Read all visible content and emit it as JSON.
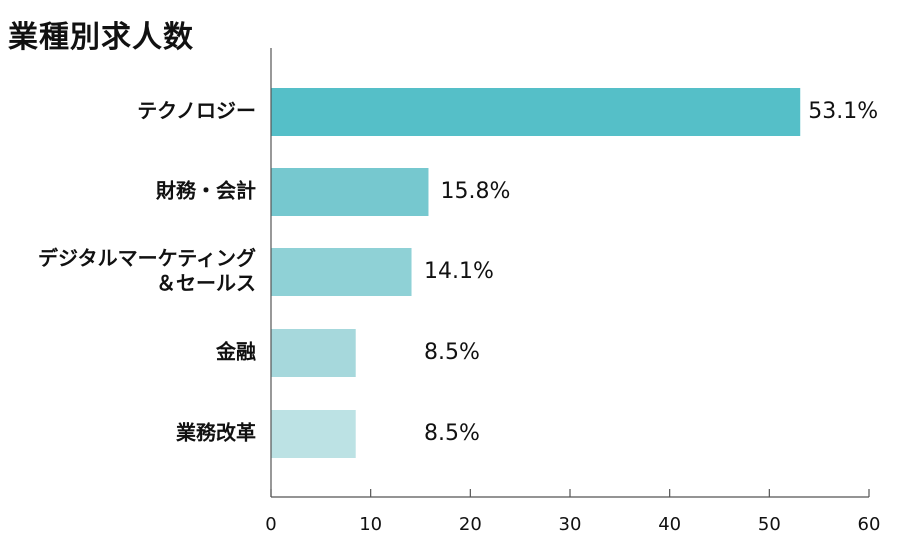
{
  "chart_data": {
    "type": "bar",
    "orientation": "horizontal",
    "title": "業種別求人数",
    "categories": [
      [
        "テクノロジー"
      ],
      [
        "財務・会計"
      ],
      [
        "デジタルマーケティング",
        "＆セールス"
      ],
      [
        "金融"
      ],
      [
        "業務改革"
      ]
    ],
    "values": [
      53.1,
      15.8,
      14.1,
      8.5,
      8.5
    ],
    "value_labels": [
      "53.1%",
      "15.8%",
      "14.1%",
      "8.5%",
      "8.5%"
    ],
    "bar_colors": [
      "#55bfc8",
      "#76c8cf",
      "#8fd1d6",
      "#a6d8dc",
      "#bce2e4"
    ],
    "xlim": [
      0,
      60
    ],
    "xticks": [
      0,
      10,
      20,
      30,
      40,
      50,
      60
    ],
    "grid": false,
    "legend": "none",
    "axis_color": "#555555"
  }
}
